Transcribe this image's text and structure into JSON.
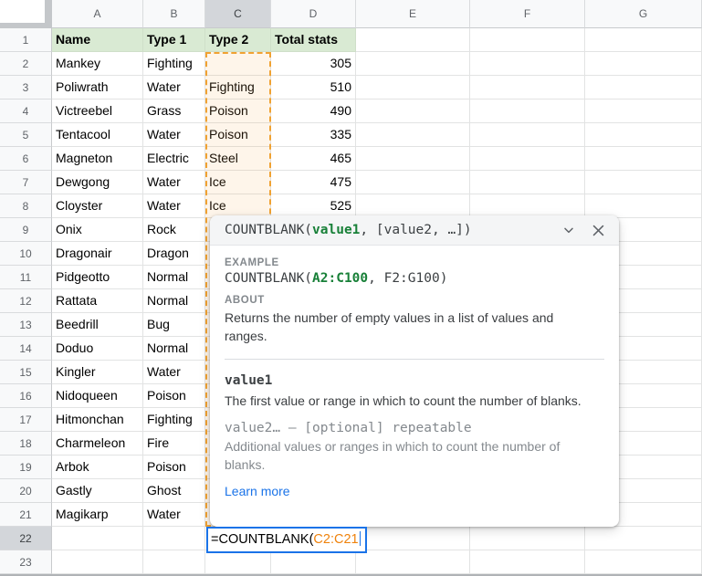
{
  "sheet": {
    "column_letters": [
      "A",
      "B",
      "C",
      "D",
      "E",
      "F",
      "G"
    ],
    "row_numbers": [
      "1",
      "2",
      "3",
      "4",
      "5",
      "6",
      "7",
      "8",
      "9",
      "10",
      "11",
      "12",
      "13",
      "14",
      "15",
      "16",
      "17",
      "18",
      "19",
      "20",
      "21",
      "22",
      "23"
    ],
    "selected_column": "C",
    "selected_row": "22"
  },
  "table": {
    "headers": [
      "Name",
      "Type 1",
      "Type 2",
      "Total stats"
    ],
    "rows": [
      [
        "Mankey",
        "Fighting",
        "",
        "305"
      ],
      [
        "Poliwrath",
        "Water",
        "Fighting",
        "510"
      ],
      [
        "Victreebel",
        "Grass",
        "Poison",
        "490"
      ],
      [
        "Tentacool",
        "Water",
        "Poison",
        "335"
      ],
      [
        "Magneton",
        "Electric",
        "Steel",
        "465"
      ],
      [
        "Dewgong",
        "Water",
        "Ice",
        "475"
      ],
      [
        "Cloyster",
        "Water",
        "Ice",
        "525"
      ],
      [
        "Onix",
        "Rock",
        null,
        null
      ],
      [
        "Dragonair",
        "Dragon",
        null,
        null
      ],
      [
        "Pidgeotto",
        "Normal",
        null,
        null
      ],
      [
        "Rattata",
        "Normal",
        null,
        null
      ],
      [
        "Beedrill",
        "Bug",
        null,
        null
      ],
      [
        "Doduo",
        "Normal",
        null,
        null
      ],
      [
        "Kingler",
        "Water",
        null,
        null
      ],
      [
        "Nidoqueen",
        "Poison",
        null,
        null
      ],
      [
        "Hitmonchan",
        "Fighting",
        null,
        null
      ],
      [
        "Charmeleon",
        "Fire",
        null,
        null
      ],
      [
        "Arbok",
        "Poison",
        null,
        null
      ],
      [
        "Gastly",
        "Ghost",
        null,
        null
      ],
      [
        "Magikarp",
        "Water",
        null,
        null
      ]
    ]
  },
  "formula": {
    "prefix": "=COUNTBLANK(",
    "range": "C2:C21"
  },
  "popup": {
    "signature_fn": "COUNTBLANK(",
    "signature_arg1": "value1",
    "signature_rest": ", [value2, …])",
    "example_label": "EXAMPLE",
    "example_fn": "COUNTBLANK(",
    "example_arg1": "A2:C100",
    "example_rest": ", F2:G100)",
    "about_label": "ABOUT",
    "about_text": "Returns the number of empty values in a list of values and ranges.",
    "arg1_name": "value1",
    "arg1_desc": "The first value or range in which to count the number of blanks.",
    "arg2_name": "value2… – [optional] repeatable",
    "arg2_desc": "Additional values or ranges in which to count the number of blanks.",
    "learn_more": "Learn more"
  },
  "colors": {
    "accent_blue": "#1a73e8",
    "function_green": "#188038",
    "range_orange": "#ef820c",
    "selection_border_orange": "#f0a232",
    "header_row_green": "#d9ead3",
    "selected_header_gray": "#d3d6da",
    "link_blue": "#1a73e8"
  }
}
